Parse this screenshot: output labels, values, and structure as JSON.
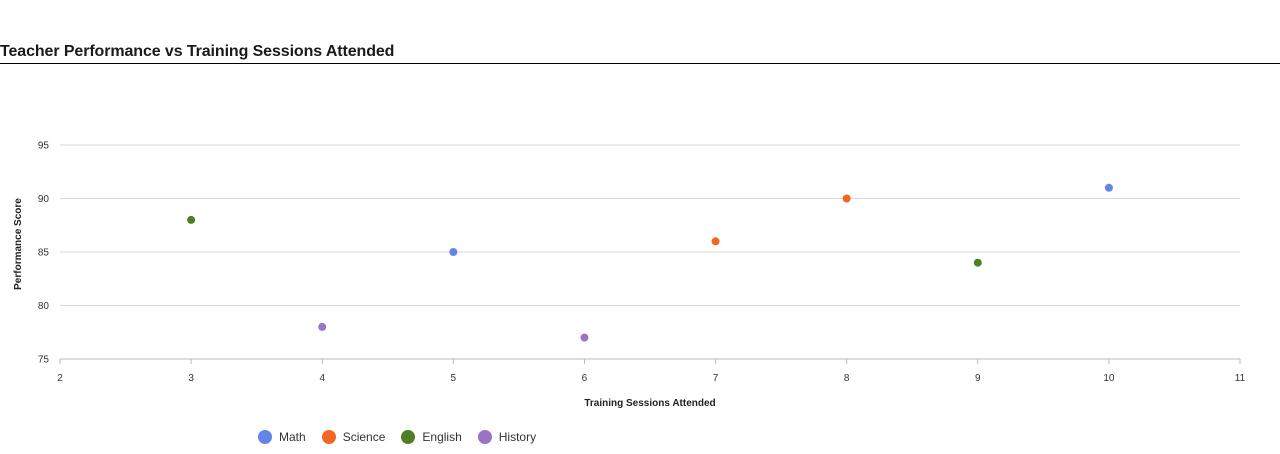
{
  "page": {
    "title": "Teacher Performance vs Training Sessions Attended"
  },
  "chart_data": {
    "type": "scatter",
    "title": "Teacher Performance vs Training Sessions Attended",
    "xlabel": "Training Sessions Attended",
    "ylabel": "Performance Score",
    "xlim": [
      2,
      11
    ],
    "ylim": [
      75,
      95
    ],
    "xticks": [
      2,
      3,
      4,
      5,
      6,
      7,
      8,
      9,
      10,
      11
    ],
    "yticks": [
      75,
      80,
      85,
      90,
      95
    ],
    "grid": true,
    "legend_position": "bottom-left",
    "series": [
      {
        "name": "Math",
        "color": "#6384e8",
        "points": [
          {
            "x": 5,
            "y": 85
          },
          {
            "x": 10,
            "y": 91
          }
        ]
      },
      {
        "name": "Science",
        "color": "#f26522",
        "points": [
          {
            "x": 7,
            "y": 86
          },
          {
            "x": 8,
            "y": 90
          }
        ]
      },
      {
        "name": "English",
        "color": "#4f7f24",
        "points": [
          {
            "x": 3,
            "y": 88
          },
          {
            "x": 9,
            "y": 84
          }
        ]
      },
      {
        "name": "History",
        "color": "#9a72c6",
        "points": [
          {
            "x": 4,
            "y": 78
          },
          {
            "x": 6,
            "y": 77
          }
        ]
      }
    ]
  }
}
